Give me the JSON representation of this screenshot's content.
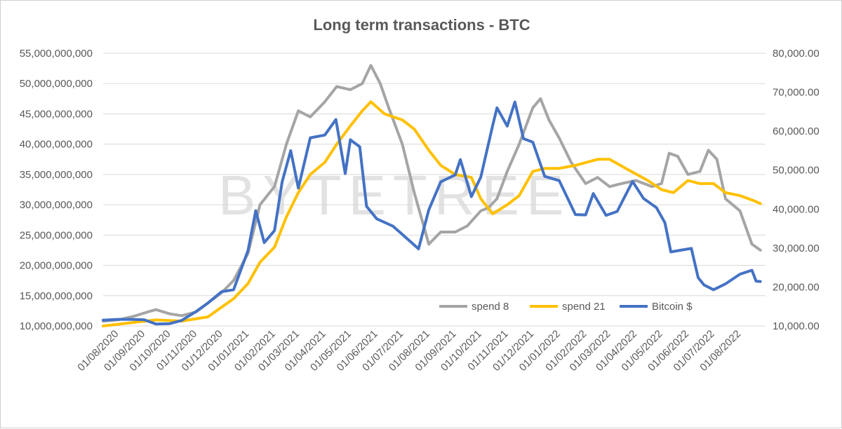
{
  "chart_data": {
    "type": "line",
    "title": "Long term transactions - BTC",
    "watermark": "BYTETREE",
    "x_labels": [
      "01/08/2020",
      "01/09/2020",
      "01/10/2020",
      "01/11/2020",
      "01/12/2020",
      "01/01/2021",
      "01/02/2021",
      "01/03/2021",
      "01/04/2021",
      "01/05/2021",
      "01/06/2021",
      "01/07/2021",
      "01/08/2021",
      "01/09/2021",
      "01/10/2021",
      "01/11/2021",
      "01/12/2021",
      "01/01/2022",
      "01/02/2022",
      "01/03/2022",
      "01/04/2022",
      "01/05/2022",
      "01/06/2022",
      "01/07/2022",
      "01/08/2022"
    ],
    "x_start": "2020-07-15",
    "x_end": "2022-08-31",
    "y_left": {
      "min": 10000000000,
      "max": 55000000000,
      "step": 5000000000,
      "ticks": [
        "10,000,000,000",
        "15,000,000,000",
        "20,000,000,000",
        "25,000,000,000",
        "30,000,000,000",
        "35,000,000,000",
        "40,000,000,000",
        "45,000,000,000",
        "50,000,000,000",
        "55,000,000,000"
      ]
    },
    "y_right": {
      "min": 10000,
      "max": 80000,
      "step": 10000,
      "ticks": [
        "10,000.00",
        "20,000.00",
        "30,000.00",
        "40,000.00",
        "50,000.00",
        "60,000.00",
        "70,000.00",
        "80,000.00"
      ]
    },
    "legend_position": "bottom-right",
    "grid": "horizontal",
    "series": [
      {
        "name": "spend 8",
        "color": "#a5a5a5",
        "axis": "left",
        "points": [
          [
            "2020-07-15",
            10800000000.0
          ],
          [
            "2020-08-01",
            11000000000.0
          ],
          [
            "2020-08-20",
            11600000000.0
          ],
          [
            "2020-09-05",
            12300000000.0
          ],
          [
            "2020-09-15",
            12700000000.0
          ],
          [
            "2020-10-01",
            12000000000.0
          ],
          [
            "2020-10-15",
            11700000000.0
          ],
          [
            "2020-11-01",
            12300000000.0
          ],
          [
            "2020-11-15",
            13800000000.0
          ],
          [
            "2020-12-01",
            15500000000.0
          ],
          [
            "2020-12-15",
            17500000000.0
          ],
          [
            "2021-01-01",
            22000000000.0
          ],
          [
            "2021-01-15",
            30000000000.0
          ],
          [
            "2021-02-01",
            33000000000.0
          ],
          [
            "2021-02-15",
            40000000000.0
          ],
          [
            "2021-03-01",
            45500000000.0
          ],
          [
            "2021-03-15",
            44500000000.0
          ],
          [
            "2021-04-01",
            47000000000.0
          ],
          [
            "2021-04-15",
            49500000000.0
          ],
          [
            "2021-05-01",
            49000000000.0
          ],
          [
            "2021-05-15",
            50000000000.0
          ],
          [
            "2021-05-25",
            53000000000.0
          ],
          [
            "2021-06-05",
            50000000000.0
          ],
          [
            "2021-06-15",
            46000000000.0
          ],
          [
            "2021-07-01",
            40000000000.0
          ],
          [
            "2021-07-15",
            32000000000.0
          ],
          [
            "2021-07-25",
            27000000000.0
          ],
          [
            "2021-08-01",
            23500000000.0
          ],
          [
            "2021-08-15",
            25500000000.0
          ],
          [
            "2021-09-01",
            25500000000.0
          ],
          [
            "2021-09-15",
            26500000000.0
          ],
          [
            "2021-10-01",
            29000000000.0
          ],
          [
            "2021-10-10",
            29500000000.0
          ],
          [
            "2021-10-20",
            31000000000.0
          ],
          [
            "2021-11-01",
            35500000000.0
          ],
          [
            "2021-11-15",
            40000000000.0
          ],
          [
            "2021-12-01",
            46000000000.0
          ],
          [
            "2021-12-10",
            47500000000.0
          ],
          [
            "2021-12-20",
            44000000000.0
          ],
          [
            "2022-01-01",
            41000000000.0
          ],
          [
            "2022-01-15",
            37000000000.0
          ],
          [
            "2022-02-01",
            33500000000.0
          ],
          [
            "2022-02-15",
            34500000000.0
          ],
          [
            "2022-03-01",
            33000000000.0
          ],
          [
            "2022-03-15",
            33500000000.0
          ],
          [
            "2022-04-01",
            34000000000.0
          ],
          [
            "2022-04-20",
            33000000000.0
          ],
          [
            "2022-05-01",
            33500000000.0
          ],
          [
            "2022-05-10",
            38500000000.0
          ],
          [
            "2022-05-20",
            38000000000.0
          ],
          [
            "2022-06-01",
            35000000000.0
          ],
          [
            "2022-06-15",
            35500000000.0
          ],
          [
            "2022-06-25",
            39000000000.0
          ],
          [
            "2022-07-05",
            37500000000.0
          ],
          [
            "2022-07-15",
            31000000000.0
          ],
          [
            "2022-08-01",
            29000000000.0
          ],
          [
            "2022-08-15",
            23500000000.0
          ],
          [
            "2022-08-25",
            22500000000.0
          ]
        ]
      },
      {
        "name": "spend 21",
        "color": "#ffc000",
        "axis": "left",
        "points": [
          [
            "2020-07-15",
            10000000000.0
          ],
          [
            "2020-08-15",
            10500000000.0
          ],
          [
            "2020-09-15",
            11000000000.0
          ],
          [
            "2020-10-15",
            10800000000.0
          ],
          [
            "2020-11-15",
            11500000000.0
          ],
          [
            "2020-12-15",
            14500000000.0
          ],
          [
            "2021-01-01",
            17000000000.0
          ],
          [
            "2021-01-15",
            20500000000.0
          ],
          [
            "2021-02-01",
            23000000000.0
          ],
          [
            "2021-02-15",
            28000000000.0
          ],
          [
            "2021-03-01",
            32000000000.0
          ],
          [
            "2021-03-15",
            35000000000.0
          ],
          [
            "2021-04-01",
            37000000000.0
          ],
          [
            "2021-04-15",
            40000000000.0
          ],
          [
            "2021-05-01",
            43000000000.0
          ],
          [
            "2021-05-15",
            45500000000.0
          ],
          [
            "2021-05-25",
            47000000000.0
          ],
          [
            "2021-06-10",
            45000000000.0
          ],
          [
            "2021-07-01",
            44000000000.0
          ],
          [
            "2021-07-15",
            42500000000.0
          ],
          [
            "2021-08-01",
            39000000000.0
          ],
          [
            "2021-08-15",
            36500000000.0
          ],
          [
            "2021-09-01",
            35000000000.0
          ],
          [
            "2021-09-20",
            34500000000.0
          ],
          [
            "2021-10-01",
            31000000000.0
          ],
          [
            "2021-10-15",
            28500000000.0
          ],
          [
            "2021-11-01",
            30000000000.0
          ],
          [
            "2021-11-15",
            31500000000.0
          ],
          [
            "2021-12-01",
            35500000000.0
          ],
          [
            "2021-12-15",
            36000000000.0
          ],
          [
            "2022-01-01",
            36000000000.0
          ],
          [
            "2022-01-20",
            36500000000.0
          ],
          [
            "2022-02-15",
            37500000000.0
          ],
          [
            "2022-03-01",
            37500000000.0
          ],
          [
            "2022-03-20",
            36000000000.0
          ],
          [
            "2022-04-15",
            34000000000.0
          ],
          [
            "2022-05-01",
            32500000000.0
          ],
          [
            "2022-05-15",
            32000000000.0
          ],
          [
            "2022-06-01",
            34000000000.0
          ],
          [
            "2022-06-15",
            33500000000.0
          ],
          [
            "2022-07-01",
            33500000000.0
          ],
          [
            "2022-07-15",
            32000000000.0
          ],
          [
            "2022-08-01",
            31500000000.0
          ],
          [
            "2022-08-15",
            30800000000.0
          ],
          [
            "2022-08-25",
            30200000000.0
          ]
        ]
      },
      {
        "name": "Bitcoin $",
        "color": "#4472c4",
        "axis": "right",
        "points": [
          [
            "2020-07-15",
            11500
          ],
          [
            "2020-08-01",
            11700
          ],
          [
            "2020-08-15",
            11700
          ],
          [
            "2020-09-01",
            11600
          ],
          [
            "2020-09-15",
            10500
          ],
          [
            "2020-10-01",
            10600
          ],
          [
            "2020-10-15",
            11400
          ],
          [
            "2020-11-01",
            13700
          ],
          [
            "2020-11-15",
            15900
          ],
          [
            "2020-12-01",
            18800
          ],
          [
            "2020-12-15",
            19300
          ],
          [
            "2021-01-01",
            29400
          ],
          [
            "2021-01-10",
            39600
          ],
          [
            "2021-01-20",
            31400
          ],
          [
            "2021-02-01",
            34500
          ],
          [
            "2021-02-10",
            47000
          ],
          [
            "2021-02-20",
            55000
          ],
          [
            "2021-03-01",
            45400
          ],
          [
            "2021-03-15",
            58300
          ],
          [
            "2021-04-01",
            59000
          ],
          [
            "2021-04-14",
            63000
          ],
          [
            "2021-04-25",
            49100
          ],
          [
            "2021-05-01",
            57800
          ],
          [
            "2021-05-12",
            56000
          ],
          [
            "2021-05-20",
            40700
          ],
          [
            "2021-06-01",
            37500
          ],
          [
            "2021-06-20",
            35600
          ],
          [
            "2021-07-01",
            33500
          ],
          [
            "2021-07-20",
            29800
          ],
          [
            "2021-08-01",
            39800
          ],
          [
            "2021-08-15",
            47000
          ],
          [
            "2021-09-01",
            48800
          ],
          [
            "2021-09-07",
            52700
          ],
          [
            "2021-09-20",
            43200
          ],
          [
            "2021-10-01",
            48200
          ],
          [
            "2021-10-15",
            61500
          ],
          [
            "2021-10-20",
            66000
          ],
          [
            "2021-11-01",
            61300
          ],
          [
            "2021-11-10",
            67500
          ],
          [
            "2021-11-20",
            58100
          ],
          [
            "2021-12-01",
            57200
          ],
          [
            "2021-12-15",
            48400
          ],
          [
            "2022-01-01",
            47300
          ],
          [
            "2022-01-20",
            38600
          ],
          [
            "2022-02-01",
            38500
          ],
          [
            "2022-02-10",
            44000
          ],
          [
            "2022-02-25",
            38400
          ],
          [
            "2022-03-10",
            39400
          ],
          [
            "2022-03-28",
            47100
          ],
          [
            "2022-04-10",
            42700
          ],
          [
            "2022-04-25",
            40400
          ],
          [
            "2022-05-05",
            36500
          ],
          [
            "2022-05-12",
            29000
          ],
          [
            "2022-05-25",
            29500
          ],
          [
            "2022-06-05",
            29900
          ],
          [
            "2022-06-13",
            22400
          ],
          [
            "2022-06-20",
            20500
          ],
          [
            "2022-07-01",
            19300
          ],
          [
            "2022-07-15",
            20800
          ],
          [
            "2022-08-01",
            23300
          ],
          [
            "2022-08-15",
            24300
          ],
          [
            "2022-08-20",
            21500
          ],
          [
            "2022-08-25",
            21400
          ]
        ]
      }
    ]
  }
}
